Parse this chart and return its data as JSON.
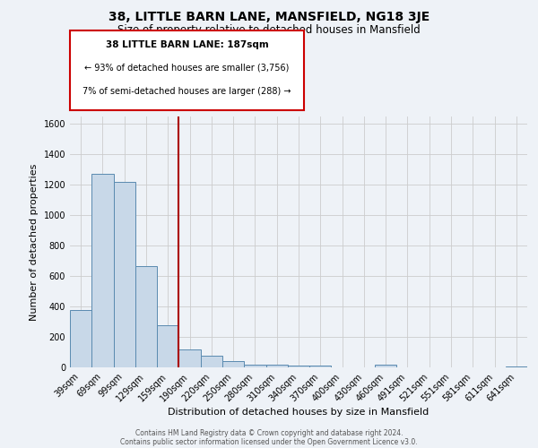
{
  "title": "38, LITTLE BARN LANE, MANSFIELD, NG18 3JE",
  "subtitle": "Size of property relative to detached houses in Mansfield",
  "xlabel": "Distribution of detached houses by size in Mansfield",
  "ylabel": "Number of detached properties",
  "footer_line1": "Contains HM Land Registry data © Crown copyright and database right 2024.",
  "footer_line2": "Contains public sector information licensed under the Open Government Licence v3.0.",
  "annotation_line1": "38 LITTLE BARN LANE: 187sqm",
  "annotation_line2": "← 93% of detached houses are smaller (3,756)",
  "annotation_line3": "7% of semi-detached houses are larger (288) →",
  "bar_labels": [
    "39sqm",
    "69sqm",
    "99sqm",
    "129sqm",
    "159sqm",
    "190sqm",
    "220sqm",
    "250sqm",
    "280sqm",
    "310sqm",
    "340sqm",
    "370sqm",
    "400sqm",
    "430sqm",
    "460sqm",
    "491sqm",
    "521sqm",
    "551sqm",
    "581sqm",
    "611sqm",
    "641sqm"
  ],
  "bar_values": [
    375,
    1270,
    1220,
    665,
    275,
    120,
    75,
    40,
    20,
    15,
    10,
    10,
    0,
    0,
    15,
    0,
    0,
    0,
    0,
    0,
    5
  ],
  "bar_color": "#c8d8e8",
  "bar_edge_color": "#5a8ab0",
  "vline_color": "#aa0000",
  "ylim": [
    0,
    1650
  ],
  "yticks": [
    0,
    200,
    400,
    600,
    800,
    1000,
    1200,
    1400,
    1600
  ],
  "annotation_box_color": "#ffffff",
  "annotation_box_edge": "#cc0000",
  "bg_color": "#eef2f7",
  "grid_color": "#cccccc",
  "title_fontsize": 10,
  "subtitle_fontsize": 8.5,
  "axis_label_fontsize": 8,
  "tick_fontsize": 7
}
